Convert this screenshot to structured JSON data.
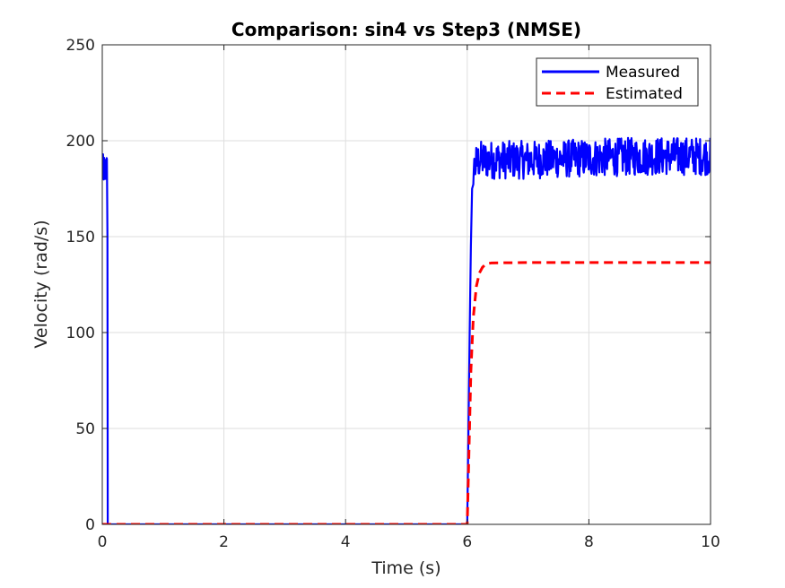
{
  "chart_data": {
    "type": "line",
    "title": "Comparison: sin4 vs Step3 (NMSE)",
    "xlabel": "Time (s)",
    "ylabel": "Velocity (rad/s)",
    "xlim": [
      0,
      10
    ],
    "ylim": [
      0,
      250
    ],
    "xticks": [
      0,
      2,
      4,
      6,
      8,
      10
    ],
    "yticks": [
      0,
      50,
      100,
      150,
      200,
      250
    ],
    "grid": true,
    "legend": {
      "placement": "top-right"
    },
    "series": [
      {
        "name": "Measured",
        "color": "#0000ff",
        "style": "solid",
        "x": [
          0.0,
          0.02,
          0.04,
          0.06,
          0.08,
          0.085,
          0.09,
          6.0,
          6.02,
          6.04,
          6.06,
          6.08,
          6.1,
          6.15,
          6.2,
          7.0,
          8.0,
          9.0,
          10.0
        ],
        "y": [
          185,
          190,
          186,
          189,
          187,
          150,
          0,
          0,
          50,
          100,
          145,
          175,
          185,
          188,
          190,
          190,
          191,
          192,
          192
        ],
        "noise": {
          "from_x": 6.1,
          "amplitude": 10
        }
      },
      {
        "name": "Estimated",
        "color": "#ff0000",
        "style": "dashed",
        "x": [
          0.0,
          6.0,
          6.03,
          6.06,
          6.1,
          6.15,
          6.2,
          6.25,
          6.3,
          6.35,
          6.4,
          7.0,
          10.0
        ],
        "y": [
          0,
          0,
          40,
          80,
          108,
          124,
          131,
          134,
          135.5,
          136,
          136.3,
          136.5,
          136.5
        ]
      }
    ]
  }
}
